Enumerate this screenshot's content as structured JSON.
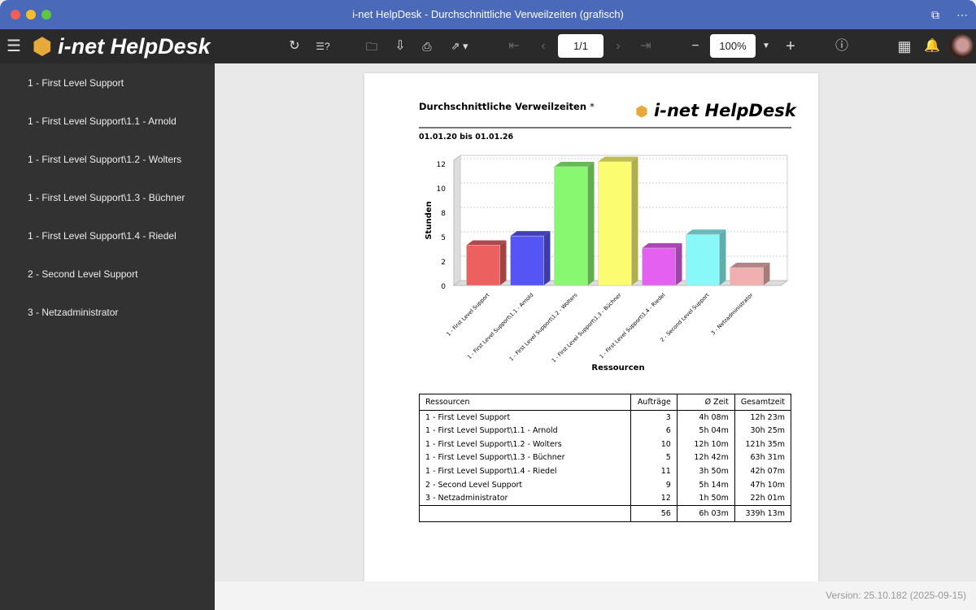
{
  "window": {
    "title": "i-net HelpDesk - Durchschnittliche Verweilzeiten (grafisch)"
  },
  "toolbar": {
    "logo": "i-net HelpDesk",
    "page": "1/1",
    "zoom": "100%"
  },
  "sidebar": {
    "items": [
      "1 - First Level Support",
      "1 - First Level Support\\1.1 - Arnold",
      "1 - First Level Support\\1.2 - Wolters",
      "1 - First Level Support\\1.3 - Büchner",
      "1 - First Level Support\\1.4 - Riedel",
      "2 - Second Level Support",
      "3 - Netzadministrator"
    ]
  },
  "report": {
    "title": "Durchschnittliche Verweilzeiten",
    "title_marker": "*",
    "logo": "i-net HelpDesk",
    "date_range": "01.01.20 bis 01.01.26"
  },
  "chart_data": {
    "type": "bar",
    "style": "3d",
    "ylabel": "Stunden",
    "xlabel": "Ressourcen",
    "ylim": [
      0,
      12.5
    ],
    "grid": true,
    "yticks": [
      0,
      2.5,
      5,
      7.5,
      10,
      12.5
    ],
    "ytick_labels": [
      "0",
      "2",
      "5",
      "8",
      "10",
      "12"
    ],
    "categories": [
      "1 - First Level Support",
      "1 - First Level Support\\1.1 - Arnold",
      "1 - First Level Support\\1.2 - Wolters",
      "1 - First Level Support\\1.3 - Büchner",
      "1 - First Level Support\\1.4 - Riedel",
      "2 - Second Level Support",
      "3 - Netzadministrator"
    ],
    "values": [
      4.13,
      5.07,
      12.17,
      12.7,
      3.83,
      5.23,
      1.83
    ],
    "colors": [
      "#ec6060",
      "#5555f5",
      "#88f870",
      "#fcfc70",
      "#e460f0",
      "#88f8f8",
      "#f0b0b0"
    ]
  },
  "table": {
    "headers": [
      "Ressourcen",
      "Aufträge",
      "Ø Zeit",
      "Gesamtzeit"
    ],
    "rows": [
      [
        "1 - First Level Support",
        "3",
        "4h 08m",
        "12h 23m"
      ],
      [
        "1 - First Level Support\\1.1 - Arnold",
        "6",
        "5h 04m",
        "30h 25m"
      ],
      [
        "1 - First Level Support\\1.2 - Wolters",
        "10",
        "12h 10m",
        "121h 35m"
      ],
      [
        "1 - First Level Support\\1.3 - Büchner",
        "5",
        "12h 42m",
        "63h 31m"
      ],
      [
        "1 - First Level Support\\1.4 - Riedel",
        "11",
        "3h 50m",
        "42h 07m"
      ],
      [
        "2 - Second Level Support",
        "9",
        "5h 14m",
        "47h 10m"
      ],
      [
        "3 - Netzadministrator",
        "12",
        "1h 50m",
        "22h 01m"
      ]
    ],
    "totals": [
      "",
      "56",
      "6h 03m",
      "339h 13m"
    ]
  },
  "footer": {
    "version": "Version: 25.10.182 (2025-09-15)"
  }
}
